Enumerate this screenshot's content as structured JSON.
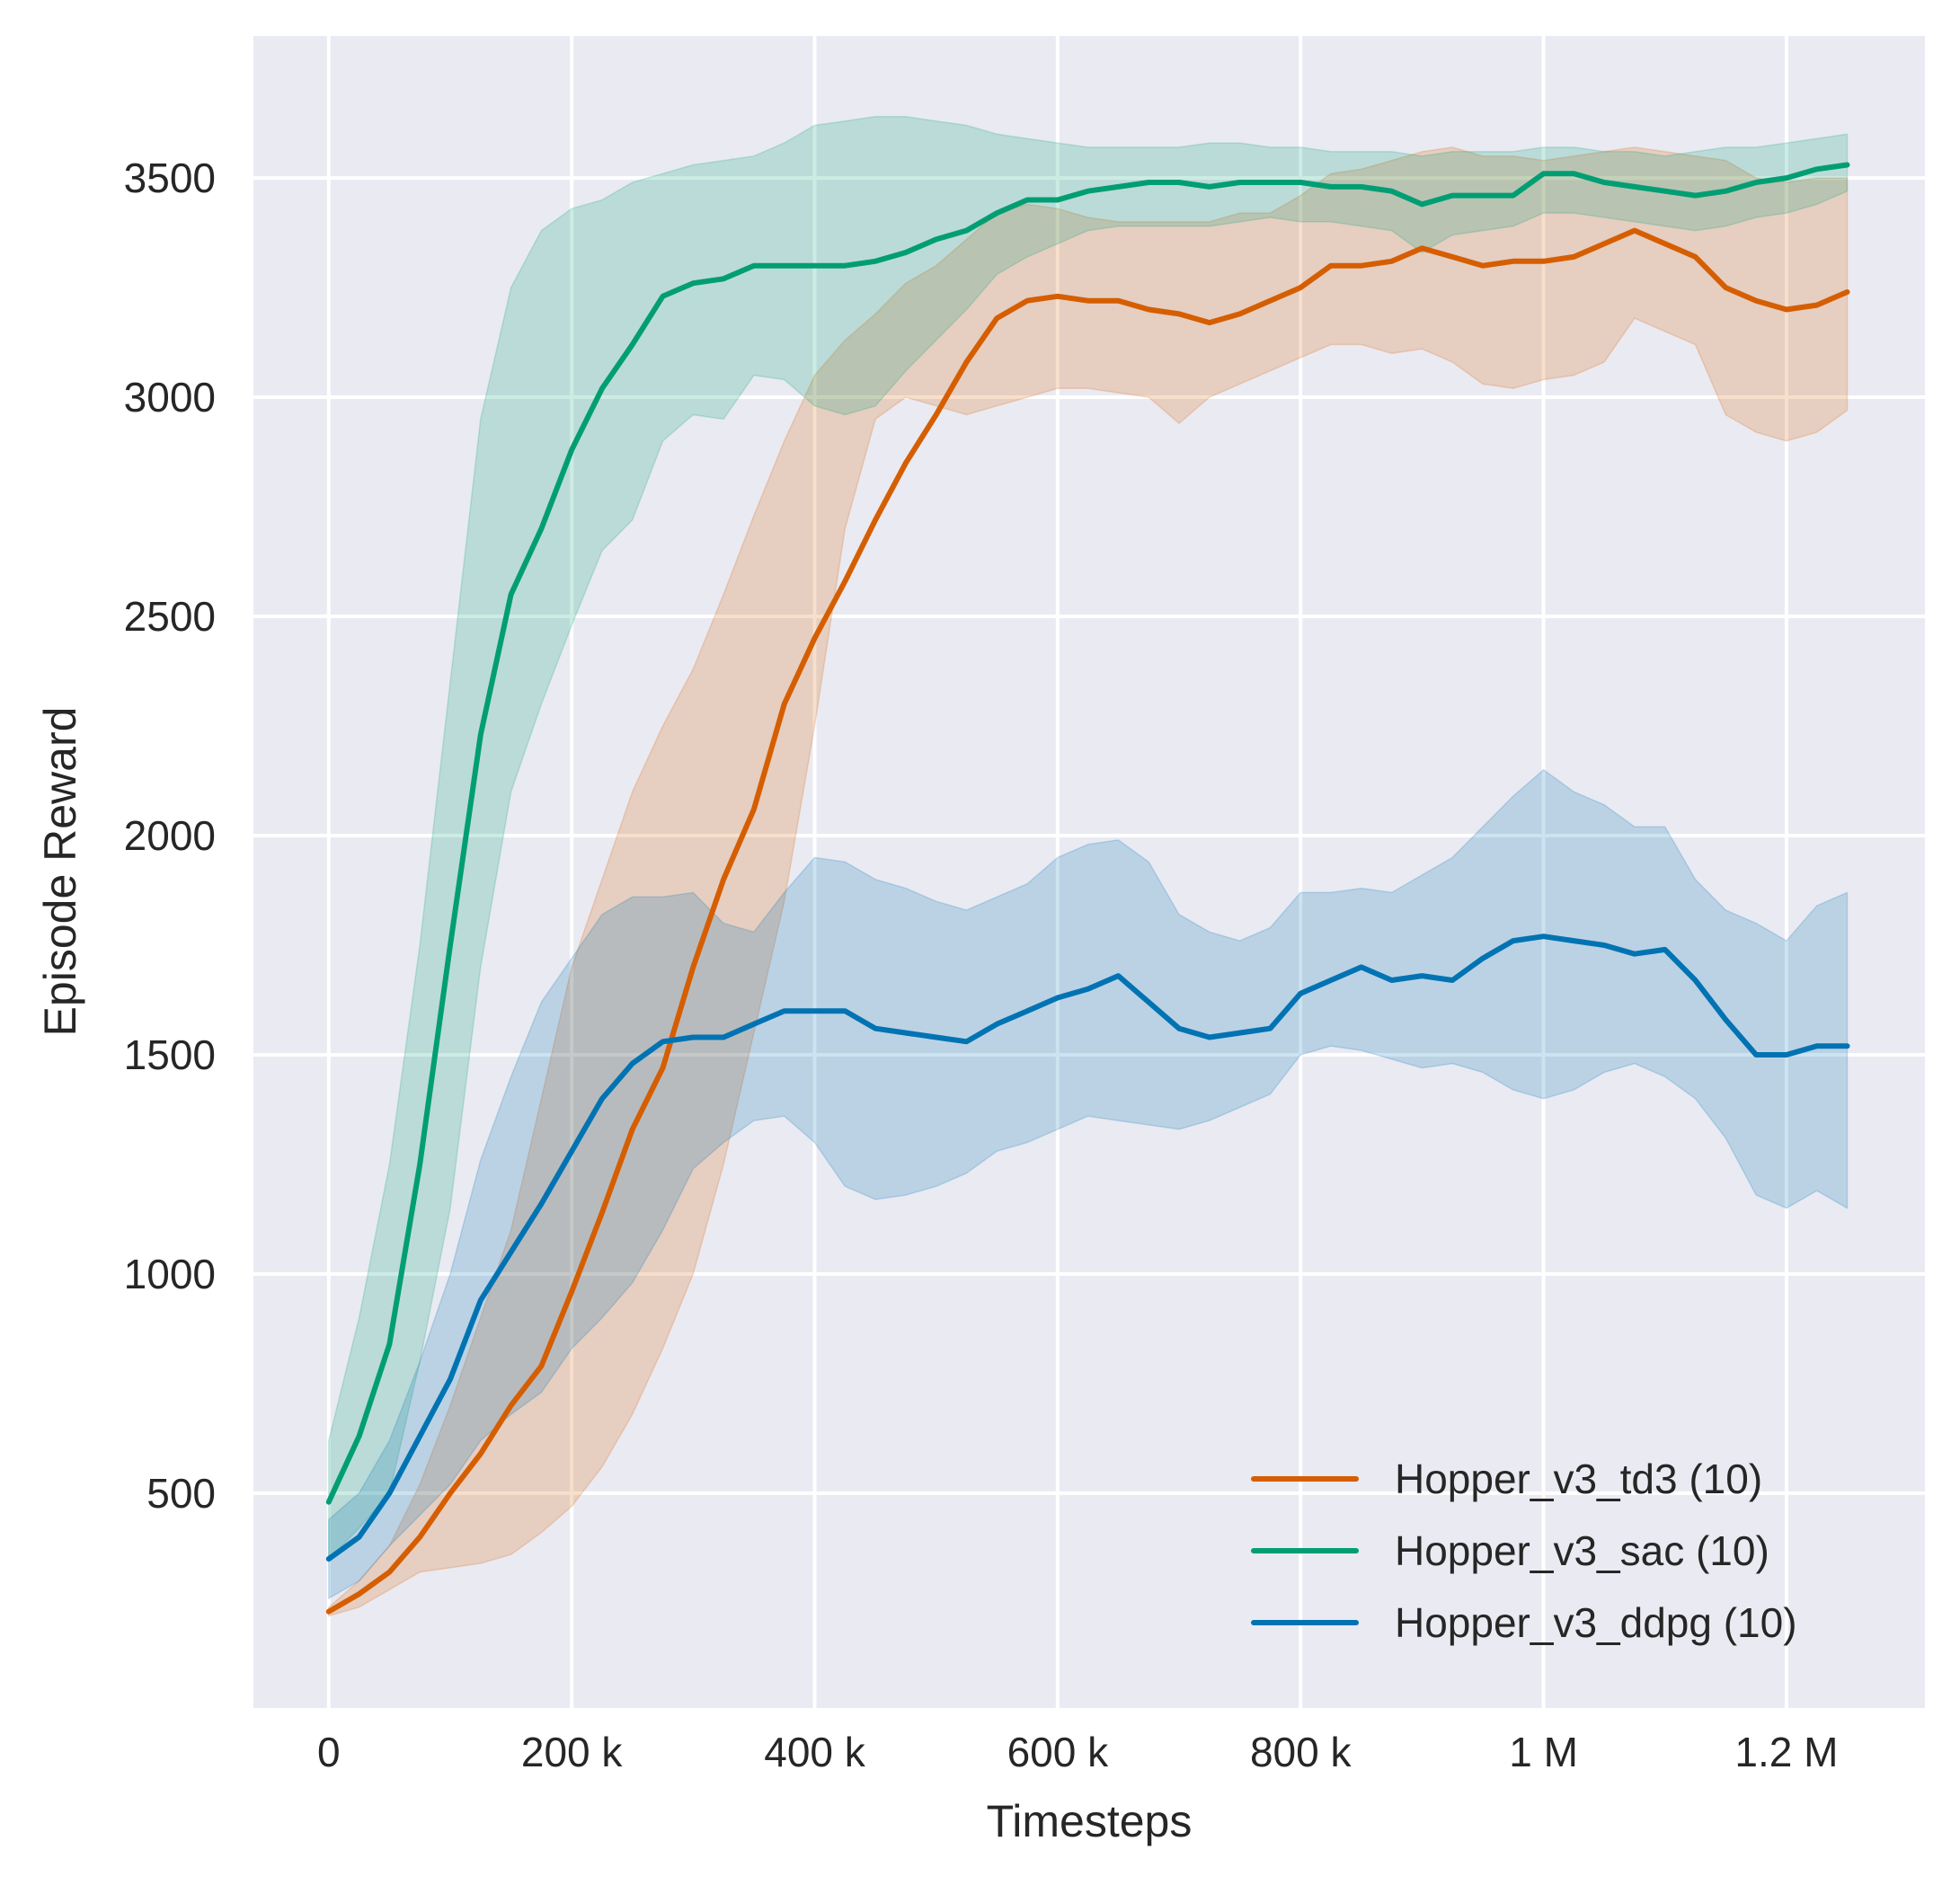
{
  "chart_data": {
    "type": "line",
    "title": "",
    "xlabel": "Timesteps",
    "ylabel": "Episode Reward",
    "xlim": [
      -62000,
      1314000
    ],
    "ylim": [
      10,
      3824
    ],
    "grid": true,
    "legend_position": "bottom-right",
    "x_ticks": [
      {
        "value": 0,
        "label": "0"
      },
      {
        "value": 200000,
        "label": "200 k"
      },
      {
        "value": 400000,
        "label": "400 k"
      },
      {
        "value": 600000,
        "label": "600 k"
      },
      {
        "value": 800000,
        "label": "800 k"
      },
      {
        "value": 1000000,
        "label": "1 M"
      },
      {
        "value": 1200000,
        "label": "1.2 M"
      }
    ],
    "y_ticks": [
      {
        "value": 500,
        "label": "500"
      },
      {
        "value": 1000,
        "label": "1000"
      },
      {
        "value": 1500,
        "label": "1500"
      },
      {
        "value": 2000,
        "label": "2000"
      },
      {
        "value": 2500,
        "label": "2500"
      },
      {
        "value": 3000,
        "label": "3000"
      },
      {
        "value": 3500,
        "label": "3500"
      }
    ],
    "x": [
      0,
      25000,
      50000,
      75000,
      100000,
      125000,
      150000,
      175000,
      200000,
      225000,
      250000,
      275000,
      300000,
      325000,
      350000,
      375000,
      400000,
      425000,
      450000,
      475000,
      500000,
      525000,
      550000,
      575000,
      600000,
      625000,
      650000,
      675000,
      700000,
      725000,
      750000,
      775000,
      800000,
      825000,
      850000,
      875000,
      900000,
      925000,
      950000,
      975000,
      1000000,
      1025000,
      1050000,
      1075000,
      1100000,
      1125000,
      1150000,
      1175000,
      1200000,
      1225000,
      1250000
    ],
    "series": [
      {
        "name": "Hopper_v3_td3 (10)",
        "color": "#d55e00",
        "values": [
          230,
          270,
          320,
          400,
          500,
          590,
          700,
          790,
          960,
          1140,
          1330,
          1470,
          1700,
          1900,
          2060,
          2300,
          2450,
          2580,
          2720,
          2850,
          2960,
          3080,
          3180,
          3220,
          3230,
          3220,
          3220,
          3200,
          3190,
          3170,
          3190,
          3220,
          3250,
          3300,
          3300,
          3310,
          3340,
          3320,
          3300,
          3310,
          3310,
          3320,
          3350,
          3380,
          3350,
          3320,
          3250,
          3220,
          3200,
          3210,
          3240
        ],
        "lower": [
          220,
          240,
          280,
          320,
          330,
          340,
          360,
          410,
          470,
          560,
          680,
          830,
          1000,
          1250,
          1550,
          1850,
          2250,
          2700,
          2950,
          3000,
          2980,
          2960,
          2980,
          3000,
          3020,
          3020,
          3010,
          3000,
          2940,
          3000,
          3030,
          3060,
          3090,
          3120,
          3120,
          3100,
          3110,
          3080,
          3030,
          3020,
          3040,
          3050,
          3080,
          3180,
          3150,
          3120,
          2960,
          2920,
          2900,
          2920,
          2970
        ],
        "upper": [
          240,
          300,
          380,
          520,
          700,
          900,
          1100,
          1400,
          1700,
          1900,
          2100,
          2250,
          2380,
          2550,
          2730,
          2900,
          3050,
          3130,
          3190,
          3260,
          3300,
          3360,
          3420,
          3440,
          3430,
          3410,
          3400,
          3400,
          3400,
          3400,
          3420,
          3420,
          3460,
          3510,
          3520,
          3540,
          3560,
          3570,
          3550,
          3550,
          3540,
          3550,
          3560,
          3570,
          3560,
          3550,
          3540,
          3500,
          3490,
          3500,
          3500
        ]
      },
      {
        "name": "Hopper_v3_sac (10)",
        "color": "#029e73",
        "values": [
          480,
          630,
          840,
          1250,
          1750,
          2230,
          2550,
          2700,
          2880,
          3020,
          3120,
          3230,
          3260,
          3270,
          3300,
          3300,
          3300,
          3300,
          3310,
          3330,
          3360,
          3380,
          3420,
          3450,
          3450,
          3470,
          3480,
          3490,
          3490,
          3480,
          3490,
          3490,
          3490,
          3480,
          3480,
          3470,
          3440,
          3460,
          3460,
          3460,
          3510,
          3510,
          3490,
          3480,
          3470,
          3460,
          3470,
          3490,
          3500,
          3520,
          3530
        ],
        "lower": [
          350,
          420,
          500,
          800,
          1150,
          1700,
          2100,
          2300,
          2480,
          2650,
          2720,
          2900,
          2960,
          2950,
          3050,
          3040,
          2980,
          2960,
          2980,
          3060,
          3130,
          3200,
          3280,
          3320,
          3350,
          3380,
          3390,
          3390,
          3390,
          3390,
          3400,
          3410,
          3400,
          3400,
          3390,
          3380,
          3330,
          3370,
          3380,
          3390,
          3420,
          3420,
          3410,
          3400,
          3390,
          3380,
          3390,
          3410,
          3420,
          3440,
          3470
        ],
        "upper": [
          620,
          900,
          1250,
          1750,
          2350,
          2950,
          3250,
          3380,
          3430,
          3450,
          3490,
          3510,
          3530,
          3540,
          3550,
          3580,
          3620,
          3630,
          3640,
          3640,
          3630,
          3620,
          3600,
          3590,
          3580,
          3570,
          3570,
          3570,
          3570,
          3580,
          3580,
          3570,
          3570,
          3560,
          3560,
          3560,
          3550,
          3560,
          3560,
          3560,
          3570,
          3570,
          3560,
          3560,
          3550,
          3560,
          3570,
          3570,
          3580,
          3590,
          3600
        ]
      },
      {
        "name": "Hopper_v3_ddpg (10)",
        "color": "#0173b2",
        "values": [
          350,
          400,
          500,
          630,
          760,
          940,
          1050,
          1160,
          1280,
          1400,
          1480,
          1530,
          1540,
          1540,
          1570,
          1600,
          1600,
          1600,
          1560,
          1550,
          1540,
          1530,
          1570,
          1600,
          1630,
          1650,
          1680,
          1620,
          1560,
          1540,
          1550,
          1560,
          1640,
          1670,
          1700,
          1670,
          1680,
          1670,
          1720,
          1760,
          1770,
          1760,
          1750,
          1730,
          1740,
          1670,
          1580,
          1500,
          1500,
          1520,
          1520
        ],
        "lower": [
          260,
          300,
          380,
          450,
          520,
          620,
          680,
          730,
          830,
          900,
          980,
          1100,
          1240,
          1300,
          1350,
          1360,
          1300,
          1200,
          1170,
          1180,
          1200,
          1230,
          1280,
          1300,
          1330,
          1360,
          1350,
          1340,
          1330,
          1350,
          1380,
          1410,
          1500,
          1520,
          1510,
          1490,
          1470,
          1480,
          1460,
          1420,
          1400,
          1420,
          1460,
          1480,
          1450,
          1400,
          1310,
          1180,
          1150,
          1190,
          1150
        ],
        "upper": [
          440,
          500,
          620,
          800,
          1000,
          1260,
          1450,
          1620,
          1720,
          1820,
          1860,
          1860,
          1870,
          1800,
          1780,
          1870,
          1950,
          1940,
          1900,
          1880,
          1850,
          1830,
          1860,
          1890,
          1950,
          1980,
          1990,
          1940,
          1820,
          1780,
          1760,
          1790,
          1870,
          1870,
          1880,
          1870,
          1910,
          1950,
          2020,
          2090,
          2150,
          2100,
          2070,
          2020,
          2020,
          1900,
          1830,
          1800,
          1760,
          1840,
          1870
        ]
      }
    ]
  },
  "colors": {
    "plot_background": "#eaeaf2",
    "grid": "#ffffff",
    "text": "#262626"
  }
}
